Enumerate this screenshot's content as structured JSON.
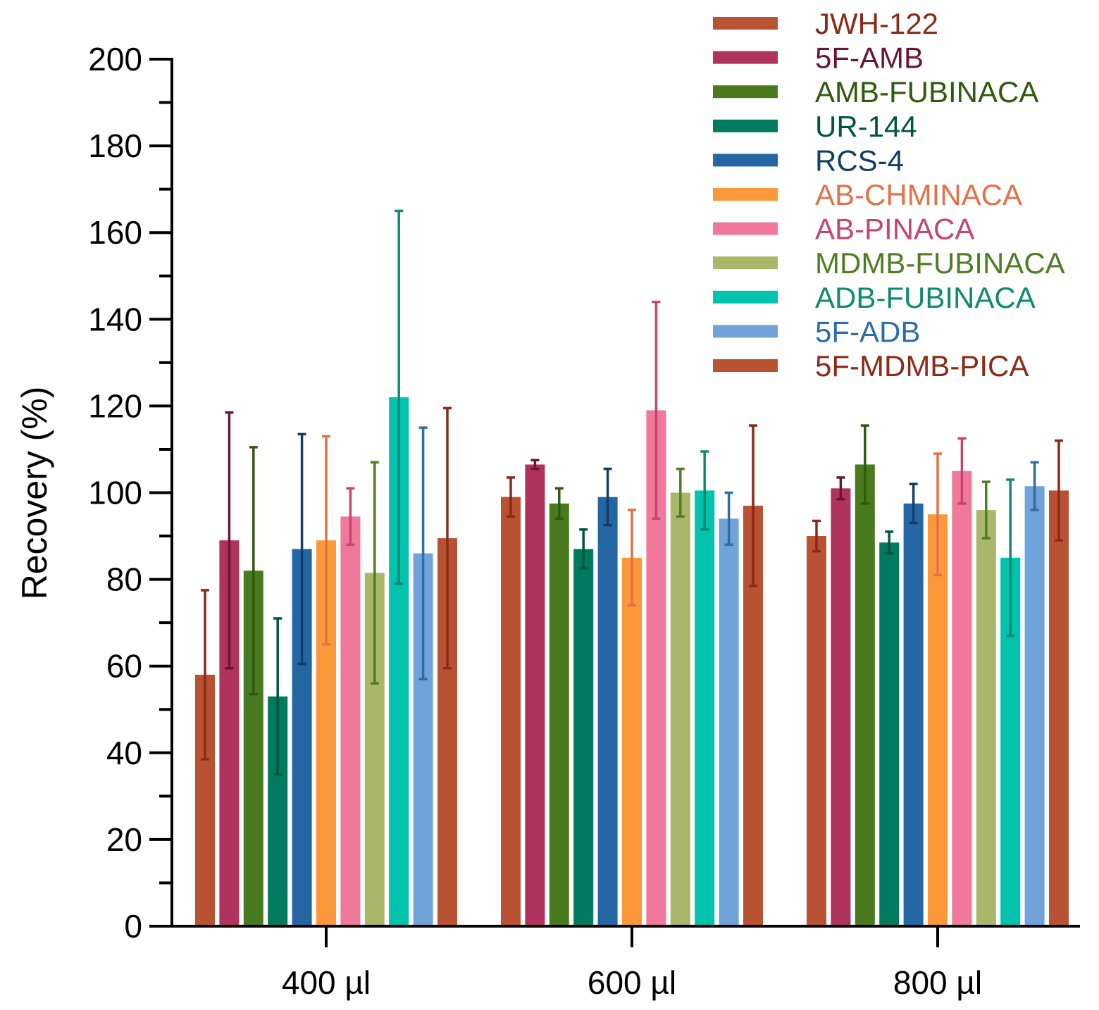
{
  "chart_data": {
    "type": "bar",
    "title": "",
    "xlabel": "",
    "ylabel": "Recovery (%)",
    "ylim": [
      0,
      200
    ],
    "y_major_ticks": [
      0,
      20,
      40,
      60,
      80,
      100,
      120,
      140,
      160,
      180,
      200
    ],
    "y_minor_step": 10,
    "categories": [
      "400 µl",
      "600 µl",
      "800 µl"
    ],
    "legend_position": "top-right",
    "series": [
      {
        "name": "JWH-122",
        "color": "#B85233",
        "label_color": "#8B2A16",
        "values": [
          58,
          99,
          90
        ],
        "errors": [
          19.5,
          4.5,
          3.5
        ]
      },
      {
        "name": "5F-AMB",
        "color": "#B0335E",
        "label_color": "#6B1433",
        "values": [
          89,
          106.5,
          101
        ],
        "errors": [
          29.5,
          1,
          2.5
        ]
      },
      {
        "name": "AMB-FUBINACA",
        "color": "#4A7A1E",
        "label_color": "#2E5A0C",
        "values": [
          82,
          97.5,
          106.5
        ],
        "errors": [
          28.5,
          3.5,
          9
        ]
      },
      {
        "name": "UR-144",
        "color": "#007A5E",
        "label_color": "#00573F",
        "values": [
          53,
          87,
          88.5
        ],
        "errors": [
          18,
          4.5,
          2.5
        ]
      },
      {
        "name": "RCS-4",
        "color": "#2366A3",
        "label_color": "#123E6B",
        "values": [
          87,
          99,
          97.5
        ],
        "errors": [
          26.5,
          6.5,
          4.5
        ]
      },
      {
        "name": "AB-CHMINACA",
        "color": "#FC983A",
        "label_color": "#E2714A",
        "values": [
          89,
          85,
          95
        ],
        "errors": [
          24,
          11,
          14
        ]
      },
      {
        "name": "AB-PINACA",
        "color": "#F0789A",
        "label_color": "#C84370",
        "values": [
          94.5,
          119,
          105
        ],
        "errors": [
          6.5,
          25,
          7.5
        ]
      },
      {
        "name": "MDMB-FUBINACA",
        "color": "#AAB76A",
        "label_color": "#4E7E22",
        "values": [
          81.5,
          100,
          96
        ],
        "errors": [
          25.5,
          5.5,
          6.5
        ]
      },
      {
        "name": "ADB-FUBINACA",
        "color": "#00C3AE",
        "label_color": "#0E8A6F",
        "values": [
          122,
          100.5,
          85
        ],
        "errors": [
          43,
          9,
          18
        ]
      },
      {
        "name": "5F-ADB",
        "color": "#6FA3D9",
        "label_color": "#2F6DA8",
        "values": [
          86,
          94,
          101.5
        ],
        "errors": [
          29,
          6,
          5.5
        ]
      },
      {
        "name": "5F-MDMB-PICA",
        "color": "#B85233",
        "label_color": "#8B2A16",
        "values": [
          89.5,
          97,
          100.5
        ],
        "errors": [
          30,
          18.5,
          11.5
        ]
      }
    ]
  }
}
